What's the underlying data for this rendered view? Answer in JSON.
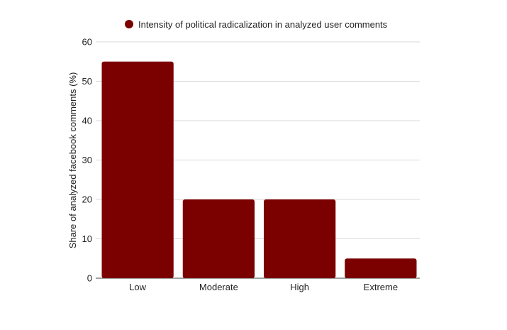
{
  "chart_data": {
    "type": "bar",
    "categories": [
      "Low",
      "Moderate",
      "High",
      "Extreme"
    ],
    "series": [
      {
        "name": "Intensity of political radicalization in analyzed user comments",
        "values": [
          55,
          20,
          20,
          5
        ]
      }
    ],
    "ylabel": "Share of analyzed facebook comments (%)",
    "xlabel": "",
    "ylim": [
      0,
      60
    ],
    "yticks": [
      0,
      10,
      20,
      30,
      40,
      50,
      60
    ],
    "grid": true,
    "legend": "top-center",
    "colors": {
      "bar": "#7b0000"
    }
  }
}
